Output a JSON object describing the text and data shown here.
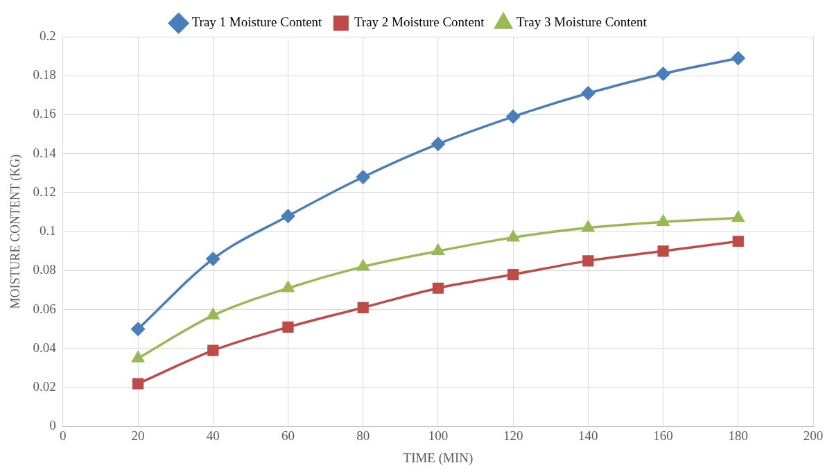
{
  "chart_data": {
    "type": "line",
    "xlabel": "TIME (MIN)",
    "ylabel": "MOISTURE CONTENT (KG)",
    "x": [
      20,
      40,
      60,
      80,
      100,
      120,
      140,
      160,
      180
    ],
    "series": [
      {
        "name": "Tray 1 Moisture Content",
        "color": "#4a7ebb",
        "marker": "diamond",
        "values": [
          0.05,
          0.086,
          0.108,
          0.128,
          0.145,
          0.159,
          0.171,
          0.181,
          0.189
        ]
      },
      {
        "name": "Tray 2 Moisture Content",
        "color": "#be4b48",
        "marker": "square",
        "values": [
          0.022,
          0.039,
          0.051,
          0.061,
          0.071,
          0.078,
          0.085,
          0.09,
          0.095
        ]
      },
      {
        "name": "Tray 3 Moisture Content",
        "color": "#98b954",
        "marker": "triangle",
        "values": [
          0.035,
          0.057,
          0.071,
          0.082,
          0.09,
          0.097,
          0.102,
          0.105,
          0.107
        ]
      }
    ],
    "xlim": [
      0,
      200
    ],
    "xticks": [
      0,
      20,
      40,
      60,
      80,
      100,
      120,
      140,
      160,
      180,
      200
    ],
    "ylim": [
      0,
      0.2
    ],
    "yticks": [
      0,
      0.02,
      0.04,
      0.06,
      0.08,
      0.1,
      0.12,
      0.14,
      0.16,
      0.18,
      0.2
    ],
    "grid": true,
    "legend": "top",
    "line_style": "solid"
  }
}
